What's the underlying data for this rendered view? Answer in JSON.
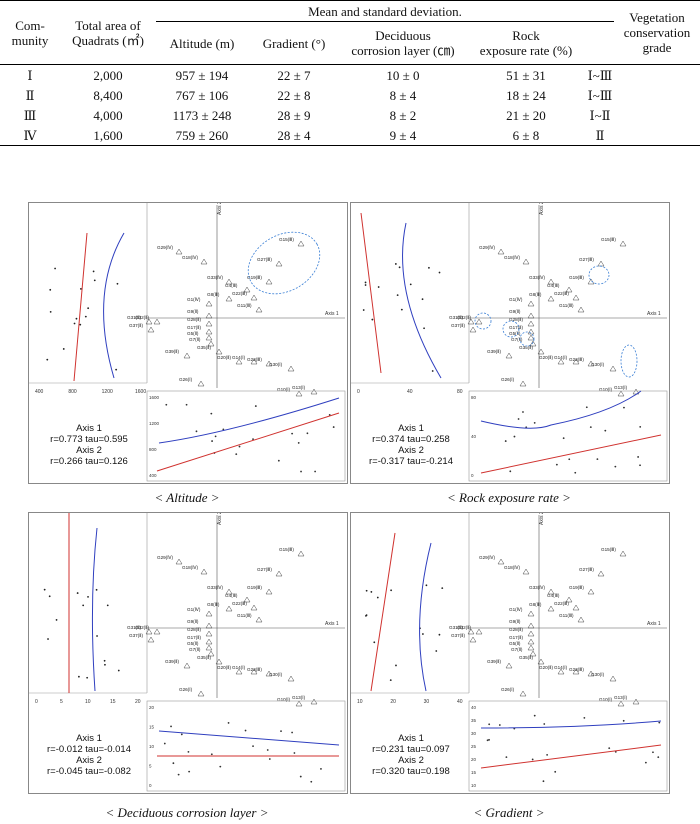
{
  "table": {
    "header": {
      "community": "Com-\nmunity",
      "total_area": "Total area of\nQuadrats (㎡)",
      "mean_sd": "Mean and standard deviation.",
      "altitude": "Altitude (m)",
      "gradient": "Gradient (°)",
      "deciduous": "Deciduous\ncorrosion layer (㎝)",
      "rock": "Rock\nexposure rate (%)",
      "vegetation": "Vegetation\nconservation\ngrade"
    },
    "rows": [
      {
        "community": "Ⅰ",
        "area": "2,000",
        "altitude": "957 ± 194",
        "gradient": "22 ± 7",
        "deciduous": "10 ± 0",
        "rock": "51 ± 31",
        "grade": "Ⅰ~Ⅲ"
      },
      {
        "community": "Ⅱ",
        "area": "8,400",
        "altitude": "767 ± 106",
        "gradient": "22 ± 8",
        "deciduous": "8 ± 4",
        "rock": "18 ± 24",
        "grade": "Ⅰ~Ⅲ"
      },
      {
        "community": "Ⅲ",
        "area": "4,000",
        "altitude": "1173 ± 248",
        "gradient": "28 ± 9",
        "deciduous": "8 ± 2",
        "rock": "21 ± 20",
        "grade": "Ⅰ~Ⅱ"
      },
      {
        "community": "Ⅳ",
        "area": "1,600",
        "altitude": "759 ± 260",
        "gradient": "28 ± 4",
        "deciduous": "9 ± 4",
        "rock": "6 ± 8",
        "grade": "Ⅱ"
      }
    ]
  },
  "panels": [
    {
      "caption": "< Altitude >",
      "axis1": "Axis 1",
      "r1": "r=0.773  tau=0.595",
      "axis2": "Axis 2",
      "r2": "r=0.266  tau=0.126",
      "left_ticks": [
        "400",
        "800",
        "1200",
        "1600"
      ],
      "bottom_ticks": [
        "1600",
        "1200",
        "800",
        "400"
      ]
    },
    {
      "caption": "< Rock exposure rate >",
      "axis1": "Axis 1",
      "r1": "r=0.374  tau=0.258",
      "axis2": "Axis 2",
      "r2": "r=-0.317  tau=-0.214",
      "left_ticks": [
        "0",
        "40",
        "80"
      ],
      "bottom_ticks": [
        "80",
        "40",
        "0"
      ]
    },
    {
      "caption": "< Deciduous corrosion layer >",
      "axis1": "Axis 1",
      "r1": "r=-0.012  tau=-0.014",
      "axis2": "Axis 2",
      "r2": "r=-0.045  tau=-0.082",
      "left_ticks": [
        "0",
        "5",
        "10",
        "15",
        "20"
      ],
      "bottom_ticks": [
        "20",
        "15",
        "10",
        "5",
        "0"
      ]
    },
    {
      "caption": "< Gradient >",
      "axis1": "Axis 1",
      "r1": "r=0.231  tau=0.097",
      "axis2": "Axis 2",
      "r2": "r=0.320  tau=0.198",
      "left_ticks": [
        "10",
        "20",
        "30",
        "40"
      ],
      "bottom_ticks": [
        "40",
        "35",
        "30",
        "25",
        "20",
        "15",
        "10"
      ]
    }
  ],
  "ordination": {
    "axis1_label": "Axis 1",
    "axis2_label": "Axis 2",
    "ticks1": [
      "200",
      "400"
    ],
    "ticks2": [
      "0",
      "200",
      "400"
    ],
    "labels": [
      "G15(Ⅲ)",
      "G27(Ⅲ)",
      "G29(Ⅳ)",
      "G18(Ⅳ)",
      "G19(Ⅲ)",
      "G33(Ⅳ)",
      "G4(Ⅲ)",
      "G22(Ⅲ)",
      "G8(Ⅲ)",
      "G1(Ⅳ)",
      "G11(Ⅲ)",
      "G9(Ⅱ)",
      "G31(Ⅱ)",
      "G32(Ⅱ)",
      "G28(Ⅱ)",
      "G37(Ⅱ)",
      "G17(Ⅱ)",
      "G5(Ⅱ)",
      "G7(Ⅱ)",
      "G35(Ⅱ)",
      "G39(Ⅱ)",
      "G20(Ⅱ)",
      "G14(Ⅰ)",
      "G23(Ⅲ)",
      "G30(Ⅰ)",
      "G26(Ⅰ)",
      "G10(Ⅰ)",
      "G13(Ⅰ)"
    ]
  },
  "colors": {
    "fit_red": "#d0322f",
    "fit_blue": "#2f3fbf",
    "circle": "#3a7fd5"
  }
}
